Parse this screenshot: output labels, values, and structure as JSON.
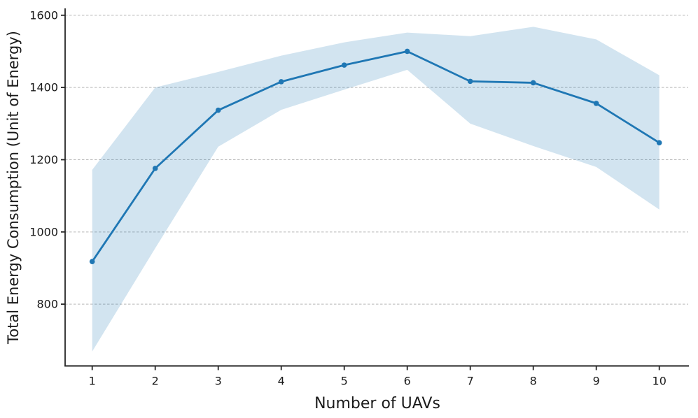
{
  "chart_data": {
    "type": "line",
    "title": "",
    "xlabel": "Number of UAVs",
    "ylabel": "Total Energy Consumption (Unit of Energy)",
    "x": [
      1,
      2,
      3,
      4,
      5,
      6,
      7,
      8,
      9,
      10
    ],
    "series": [
      {
        "name": "mean-total-energy",
        "role": "line-with-markers",
        "values": [
          918,
          1176,
          1337,
          1416,
          1462,
          1500,
          1417,
          1413,
          1356,
          1247
        ]
      },
      {
        "name": "band-upper-bound",
        "role": "shaded-band-upper",
        "values": [
          1172,
          1400,
          1443,
          1488,
          1525,
          1552,
          1542,
          1568,
          1533,
          1434
        ]
      },
      {
        "name": "band-lower-bound",
        "role": "shaded-band-lower",
        "values": [
          669,
          955,
          1236,
          1338,
          1394,
          1449,
          1300,
          1238,
          1180,
          1062
        ]
      }
    ],
    "x_ticks": [
      "1",
      "2",
      "3",
      "4",
      "5",
      "6",
      "7",
      "8",
      "9",
      "10"
    ],
    "y_ticks": [
      "800",
      "1000",
      "1200",
      "1400",
      "1600"
    ],
    "y_tick_values": [
      800,
      1000,
      1200,
      1400,
      1600
    ],
    "xlim": [
      0.57,
      10.47
    ],
    "ylim": [
      629,
      1619
    ],
    "grid": "horizontal-dashed",
    "legend": "none",
    "colors": {
      "line": "#1f77b4",
      "marker": "#1f77b4",
      "band_fill": "#1f77b4",
      "band_opacity": 0.2,
      "gridline": "#b8b8b8",
      "spine": "#262626",
      "text": "#1a1a1a"
    }
  }
}
